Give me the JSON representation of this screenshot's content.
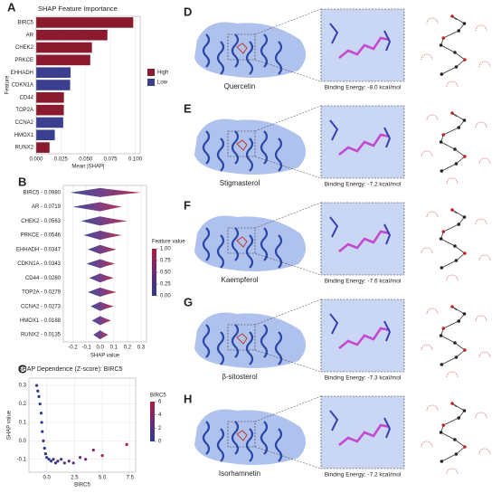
{
  "chart_data": [
    {
      "type": "bar",
      "panel": "A",
      "title": "SHAP Feature Importance",
      "xlabel": "Mean |SHAP|",
      "ylabel": "Feature",
      "categories": [
        "BIRC5",
        "AR",
        "CHEK2",
        "PRKCE",
        "EHHADH",
        "CDKN1A",
        "CD44",
        "TOP2A",
        "CCNA2",
        "HMOX1",
        "RUNX2"
      ],
      "values": [
        0.098,
        0.0719,
        0.0563,
        0.0546,
        0.0347,
        0.0343,
        0.028,
        0.0279,
        0.0273,
        0.0188,
        0.0135
      ],
      "groups": [
        "High",
        "High",
        "High",
        "High",
        "Low",
        "Low",
        "High",
        "High",
        "Low",
        "Low",
        "High"
      ],
      "legend": [
        {
          "name": "High",
          "color": "#8b1a2e"
        },
        {
          "name": "Low",
          "color": "#3b3f8f"
        }
      ],
      "xlim": [
        0,
        0.105
      ],
      "xticks": [
        {
          "value": 0,
          "label": "0.000"
        },
        {
          "value": 0.025,
          "label": "0.025"
        },
        {
          "value": 0.05,
          "label": "0.050"
        },
        {
          "value": 0.075,
          "label": "0.075"
        },
        {
          "value": 0.1,
          "label": "0.100"
        }
      ],
      "grid": true
    },
    {
      "type": "beeswarm",
      "panel": "B",
      "xlabel": "SHAP value",
      "colorbar_title": "Feature value",
      "categories": [
        "BIRC5 - 0.0980",
        "AR - 0.0719",
        "CHEK2 - 0.0563",
        "PRKCE - 0.0546",
        "EHHADH - 0.0347",
        "CDKN1A - 0.0343",
        "CD44 - 0.0280",
        "TOP2A - 0.0279",
        "CCNA2 - 0.0273",
        "HMOX1 - 0.0188",
        "RUNX2 - 0.0135"
      ],
      "ranges": [
        [
          -0.22,
          0.3
        ],
        [
          -0.2,
          0.16
        ],
        [
          -0.14,
          0.2
        ],
        [
          -0.12,
          0.16
        ],
        [
          -0.09,
          0.12
        ],
        [
          -0.1,
          0.11
        ],
        [
          -0.08,
          0.1
        ],
        [
          -0.09,
          0.12
        ],
        [
          -0.07,
          0.1
        ],
        [
          -0.06,
          0.08
        ],
        [
          -0.05,
          0.06
        ]
      ],
      "xlim": [
        -0.27,
        0.34
      ],
      "xticks": [
        -0.2,
        -0.1,
        {
          "value": 0,
          "label": "0.0"
        },
        0.1,
        0.2,
        0.3
      ],
      "colorbar_ticks": [
        {
          "value": 0,
          "label": "0.00"
        },
        0.25,
        {
          "value": 0.5,
          "label": "0.50"
        },
        0.75,
        {
          "value": 1,
          "label": "1.00"
        }
      ],
      "grid": true
    },
    {
      "type": "scatter",
      "panel": "C",
      "title": "SHAP Dependence (Z-score): BIRC5",
      "xlabel": "BIRC5",
      "ylabel": "SHAP value",
      "colorbar_title": "BIRC5",
      "x": [
        -0.9,
        -0.8,
        -0.7,
        -0.6,
        -0.5,
        -0.45,
        -0.4,
        -0.3,
        -0.2,
        -0.1,
        0,
        0.2,
        0.4,
        0.6,
        0.8,
        1.0,
        1.3,
        1.6,
        2.0,
        2.4,
        3.0,
        3.5,
        4.2,
        5.0,
        7.2
      ],
      "values": [
        0.3,
        0.27,
        0.24,
        0.2,
        0.15,
        0.1,
        0.05,
        0.0,
        -0.04,
        -0.07,
        -0.09,
        -0.1,
        -0.11,
        -0.1,
        -0.12,
        -0.11,
        -0.1,
        -0.12,
        -0.11,
        -0.12,
        -0.09,
        -0.1,
        -0.05,
        -0.08,
        -0.02
      ],
      "z": [
        -0.9,
        -0.8,
        -0.7,
        -0.6,
        -0.5,
        -0.45,
        -0.4,
        -0.3,
        -0.2,
        -0.1,
        0,
        0.2,
        0.4,
        0.6,
        0.8,
        1.0,
        1.3,
        1.6,
        2.0,
        2.4,
        3.0,
        3.5,
        4.2,
        5.0,
        7.2
      ],
      "xlim": [
        -1.6,
        8
      ],
      "ylim": [
        -0.17,
        0.34
      ],
      "xticks": [
        {
          "value": 0,
          "label": "0.0"
        },
        2.5,
        {
          "value": 5,
          "label": "5.0"
        },
        7.5
      ],
      "yticks": [
        -0.1,
        {
          "value": 0,
          "label": "0.0"
        },
        0.1,
        0.2,
        0.3
      ],
      "colorbar_ticks": [
        0,
        2,
        4,
        6
      ],
      "grid": true
    }
  ],
  "docking": [
    {
      "panel": "D",
      "compound": "Quercetin",
      "energy": "Binding Energy: -8.0 kcal/mol"
    },
    {
      "panel": "E",
      "compound": "Stigmasterol",
      "energy": "Binding Energy: -7.2 kcal/mol"
    },
    {
      "panel": "F",
      "compound": "Kaempferol",
      "energy": "Binding Energy: -7.6 kcal/mol"
    },
    {
      "panel": "G",
      "compound": "β-sitosterol",
      "energy": "Binding Energy: -7.3 kcal/mol"
    },
    {
      "panel": "H",
      "compound": "Isorhamnetin",
      "energy": "Binding Energy: -7.2 kcal/mol"
    }
  ]
}
